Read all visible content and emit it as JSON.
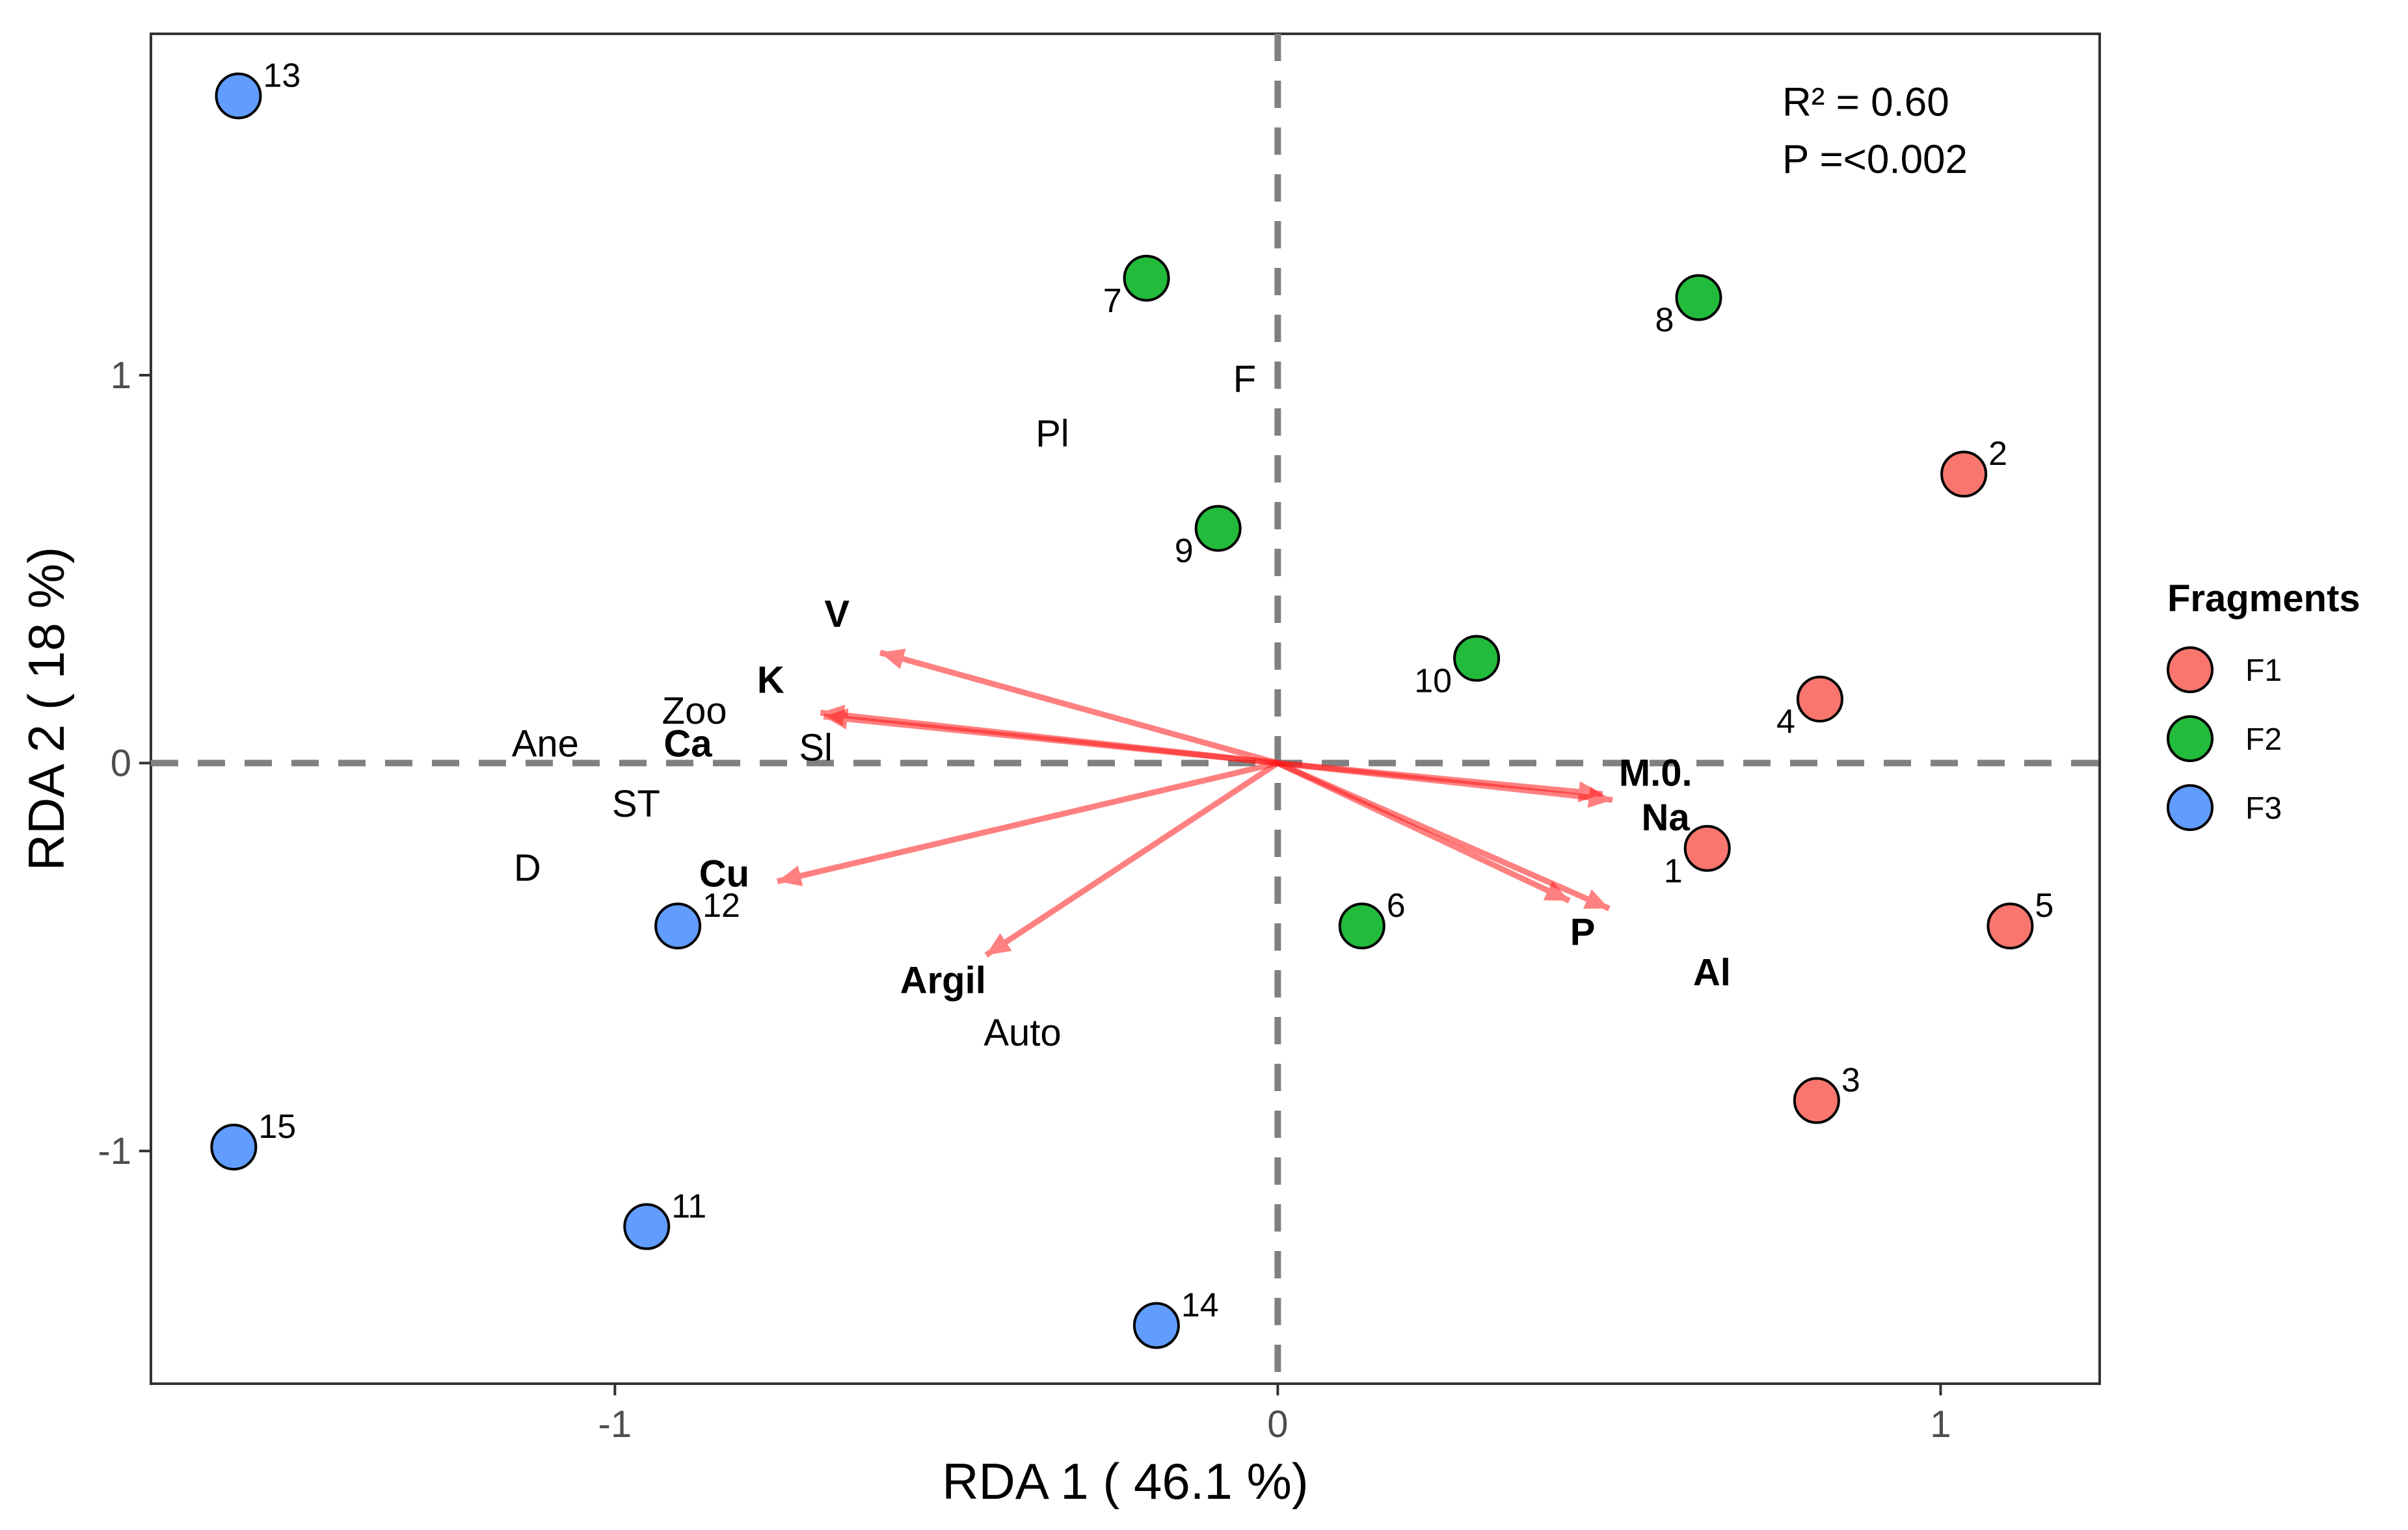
{
  "chart_data": {
    "type": "scatter",
    "xlabel": "RDA 1 ( 46.1 %)",
    "ylabel": "RDA 2 ( 18 %)",
    "xlim": [
      -1.7,
      1.24
    ],
    "ylim": [
      -1.6,
      1.88
    ],
    "xticks": [
      -1,
      0,
      1
    ],
    "xtick_labels": [
      "-1",
      "0",
      "1"
    ],
    "yticks": [
      -1,
      0,
      1
    ],
    "ytick_labels": [
      "-1",
      "0",
      "1"
    ],
    "grid": false,
    "reference_lines": {
      "x": 0,
      "y": 0,
      "style": "dashed",
      "color": "#808080"
    },
    "annotations": {
      "r2": "R² = 0.60",
      "p": "P =<0.002"
    },
    "legend": {
      "title": "Fragments",
      "position": "right",
      "entries": [
        {
          "label": "F1",
          "color": "#F8766D"
        },
        {
          "label": "F2",
          "color": "#22BB3B"
        },
        {
          "label": "F3",
          "color": "#619CFF"
        }
      ]
    },
    "series": [
      {
        "name": "F1",
        "color": "#F8766D",
        "points": [
          {
            "label": "1",
            "x": 0.648,
            "y": -0.22,
            "label_pos": "left"
          },
          {
            "label": "2",
            "x": 1.035,
            "y": 0.745,
            "label_pos": "right"
          },
          {
            "label": "3",
            "x": 0.813,
            "y": -0.87,
            "label_pos": "right"
          },
          {
            "label": "4",
            "x": 0.818,
            "y": 0.165,
            "label_pos": "left"
          },
          {
            "label": "5",
            "x": 1.105,
            "y": -0.42,
            "label_pos": "right"
          }
        ]
      },
      {
        "name": "F2",
        "color": "#22BB3B",
        "points": [
          {
            "label": "6",
            "x": 0.127,
            "y": -0.42,
            "label_pos": "right"
          },
          {
            "label": "7",
            "x": -0.198,
            "y": 1.25,
            "label_pos": "left"
          },
          {
            "label": "8",
            "x": 0.635,
            "y": 1.2,
            "label_pos": "left"
          },
          {
            "label": "9",
            "x": -0.09,
            "y": 0.605,
            "label_pos": "left"
          },
          {
            "label": "10",
            "x": 0.3,
            "y": 0.27,
            "label_pos": "left"
          }
        ]
      },
      {
        "name": "F3",
        "color": "#619CFF",
        "points": [
          {
            "label": "11",
            "x": -0.952,
            "y": -1.195,
            "label_pos": "right"
          },
          {
            "label": "12",
            "x": -0.905,
            "y": -0.42,
            "label_pos": "right"
          },
          {
            "label": "13",
            "x": -1.568,
            "y": 1.72,
            "label_pos": "right"
          },
          {
            "label": "14",
            "x": -0.183,
            "y": -1.45,
            "label_pos": "right"
          },
          {
            "label": "15",
            "x": -1.575,
            "y": -0.99,
            "label_pos": "right"
          }
        ]
      }
    ],
    "species_labels": [
      {
        "text": "F",
        "x": -0.05,
        "y": 0.99
      },
      {
        "text": "Pl",
        "x": -0.34,
        "y": 0.85
      },
      {
        "text": "Zoo",
        "x": -0.88,
        "y": 0.135
      },
      {
        "text": "Ane",
        "x": -1.105,
        "y": 0.05
      },
      {
        "text": "Sl",
        "x": -0.697,
        "y": 0.04
      },
      {
        "text": "ST",
        "x": -0.968,
        "y": -0.105
      },
      {
        "text": "D",
        "x": -1.132,
        "y": -0.27
      },
      {
        "text": "Auto",
        "x": -0.385,
        "y": -0.695
      }
    ],
    "environmental_vectors": [
      {
        "label": "V",
        "x": -0.6,
        "y": 0.285,
        "label_x": -0.665,
        "label_y": 0.385
      },
      {
        "label": "K",
        "x": -0.69,
        "y": 0.13,
        "label_x": -0.765,
        "label_y": 0.215
      },
      {
        "label": "Ca",
        "x": -0.685,
        "y": 0.12,
        "label_x": -0.89,
        "label_y": 0.05
      },
      {
        "label": "Cu",
        "x": -0.755,
        "y": -0.305,
        "label_x": -0.835,
        "label_y": -0.285
      },
      {
        "label": "Argil",
        "x": -0.44,
        "y": -0.495,
        "label_x": -0.505,
        "label_y": -0.56
      },
      {
        "label": "M.0.",
        "x": 0.505,
        "y": -0.095,
        "label_x": 0.57,
        "label_y": -0.025
      },
      {
        "label": "Na",
        "x": 0.49,
        "y": -0.08,
        "label_x": 0.585,
        "label_y": -0.14
      },
      {
        "label": "P",
        "x": 0.5,
        "y": -0.375,
        "label_x": 0.46,
        "label_y": -0.435
      },
      {
        "label": "Al",
        "x": 0.44,
        "y": -0.355,
        "label_x": 0.655,
        "label_y": -0.54
      }
    ]
  }
}
